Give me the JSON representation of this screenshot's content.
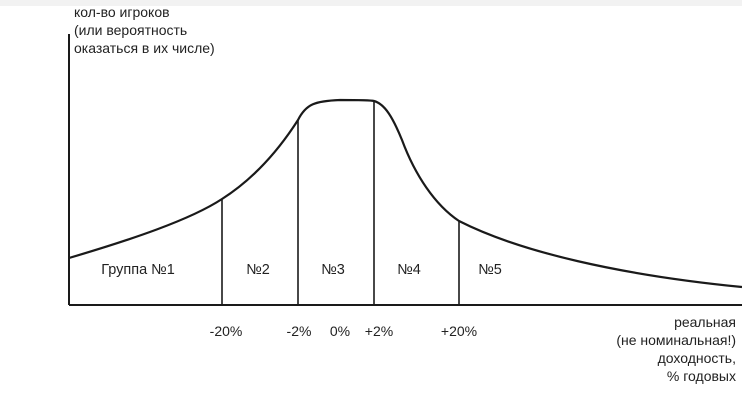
{
  "diagram": {
    "y_axis_label": [
      "кол-во игроков",
      "(или вероятность",
      "оказаться в их числе)"
    ],
    "x_axis_label": [
      "реальная",
      "(не номинальная!)",
      "доходность,",
      "% годовых"
    ],
    "tick_labels": [
      "-20%",
      "-2%",
      "0%",
      "+2%",
      "+20%"
    ],
    "groups": [
      "Группа №1",
      "№2",
      "№3",
      "№4",
      "№5"
    ],
    "colors": {
      "line": "#1a1a1a",
      "text": "#222222",
      "background": "#ffffff"
    }
  }
}
